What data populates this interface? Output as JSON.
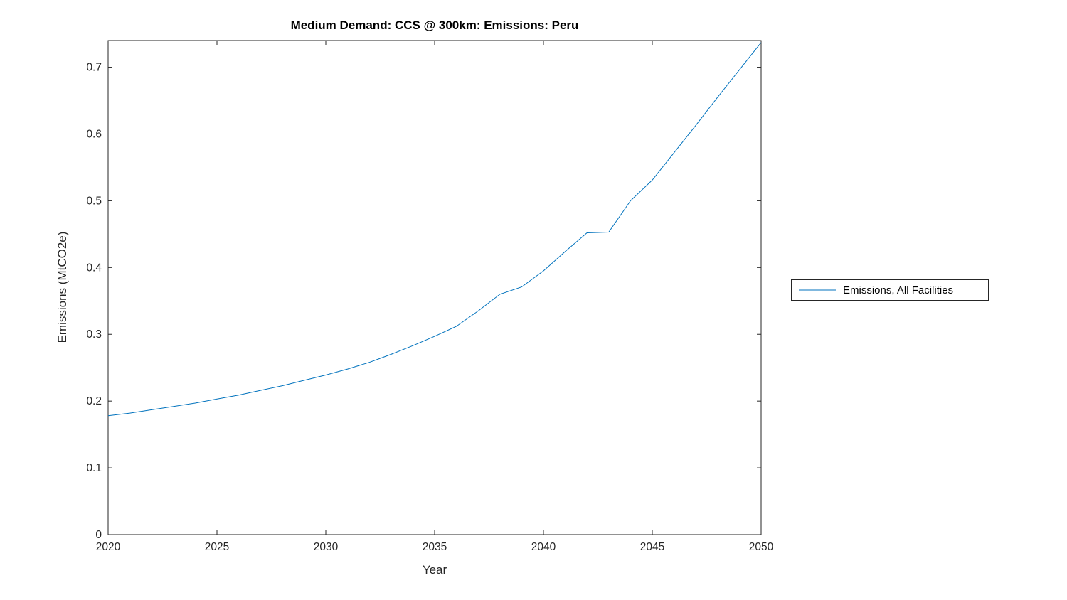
{
  "chart_data": {
    "type": "line",
    "title": "Medium Demand: CCS @ 300km: Emissions: Peru",
    "xlabel": "Year",
    "ylabel": "Emissions (MtCO2e)",
    "xlim": [
      2020,
      2050
    ],
    "ylim": [
      0,
      0.74
    ],
    "xticks": [
      2020,
      2025,
      2030,
      2035,
      2040,
      2045,
      2050
    ],
    "xtick_labels": [
      "2020",
      "2025",
      "2030",
      "2035",
      "2040",
      "2045",
      "2050"
    ],
    "yticks": [
      0,
      0.1,
      0.2,
      0.3,
      0.4,
      0.5,
      0.6,
      0.7
    ],
    "ytick_labels": [
      "0",
      "0.1",
      "0.2",
      "0.3",
      "0.4",
      "0.5",
      "0.6",
      "0.7"
    ],
    "grid": false,
    "legend_position": "right-outside",
    "line_color": "#0072BD",
    "axis_color": "#262626",
    "series": [
      {
        "name": "Emissions, All Facilities",
        "x": [
          2020,
          2021,
          2022,
          2023,
          2024,
          2025,
          2026,
          2027,
          2028,
          2029,
          2030,
          2031,
          2032,
          2033,
          2034,
          2035,
          2036,
          2037,
          2038,
          2039,
          2040,
          2041,
          2042,
          2043,
          2044,
          2045,
          2046,
          2047,
          2048,
          2049,
          2050
        ],
        "y": [
          0.178,
          0.182,
          0.187,
          0.192,
          0.197,
          0.203,
          0.209,
          0.216,
          0.223,
          0.231,
          0.239,
          0.248,
          0.258,
          0.27,
          0.283,
          0.297,
          0.312,
          0.335,
          0.36,
          0.371,
          0.395,
          0.424,
          0.452,
          0.453,
          0.5,
          0.531,
          0.572,
          0.613,
          0.655,
          0.696,
          0.737
        ]
      }
    ]
  }
}
